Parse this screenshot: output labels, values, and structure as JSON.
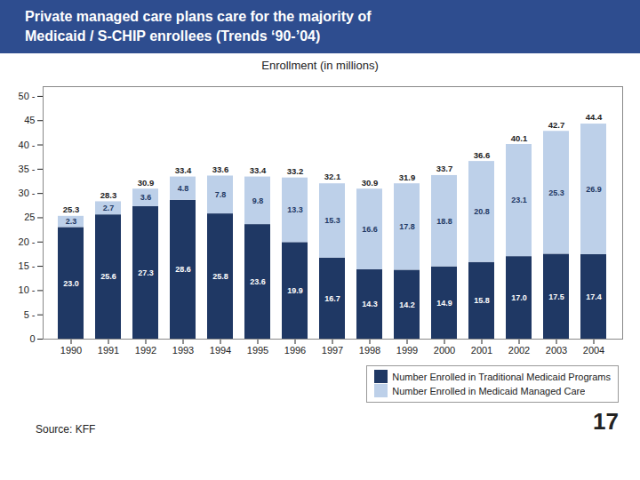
{
  "chart_data": {
    "type": "bar",
    "stacked": true,
    "data_labels": true,
    "title": [
      "Private managed care plans care for the majority of",
      "Medicaid / S-CHIP enrollees  (Trends ‘90-’04)"
    ],
    "subtitle": "Enrollment (in millions)",
    "categories": [
      "1990",
      "1991",
      "1992",
      "1993",
      "1994",
      "1995",
      "1996",
      "1997",
      "1998",
      "1999",
      "2000",
      "2001",
      "2002",
      "2003",
      "2004"
    ],
    "series": [
      {
        "name": "Number Enrolled in Traditional Medicaid Programs",
        "color": "#1F3864",
        "values": [
          23.0,
          25.6,
          27.3,
          28.6,
          25.8,
          23.6,
          19.9,
          16.7,
          14.3,
          14.2,
          14.9,
          15.8,
          17.0,
          17.5,
          17.4
        ],
        "value_labels": [
          "23.0",
          "25.6",
          "27.3",
          "28.6",
          "25.8",
          "23.6",
          "19.9",
          "16.7",
          "14.3",
          "14.2",
          "14.9",
          "15.8",
          "17.0",
          "17.5",
          "17.4"
        ]
      },
      {
        "name": "Number Enrolled in Medicaid Managed Care",
        "color": "#BDD0E9",
        "values": [
          2.3,
          2.7,
          3.6,
          4.8,
          7.8,
          9.8,
          13.3,
          15.3,
          16.6,
          17.8,
          18.8,
          20.8,
          23.1,
          25.3,
          26.9
        ]
      }
    ],
    "totals": [
      25.3,
      28.3,
      30.9,
      33.4,
      33.6,
      33.4,
      33.2,
      32.1,
      30.9,
      31.9,
      33.7,
      36.6,
      40.1,
      42.7,
      44.4
    ],
    "ylim": [
      0,
      52
    ],
    "yticks": [
      0,
      {
        "value": 5,
        "label": "5 -"
      },
      {
        "value": 10,
        "label": "10 -"
      },
      {
        "value": 15,
        "label": "15 -"
      },
      {
        "value": 20,
        "label": "20 -"
      },
      25,
      {
        "value": 30,
        "label": "30 -"
      },
      {
        "value": 35,
        "label": "35 -"
      },
      {
        "value": 40,
        "label": "40 -"
      },
      45,
      {
        "value": 50,
        "label": "50 -"
      }
    ],
    "grid": false,
    "legend": "bottom",
    "annotations": [
      "Source: KFF",
      "17"
    ]
  }
}
